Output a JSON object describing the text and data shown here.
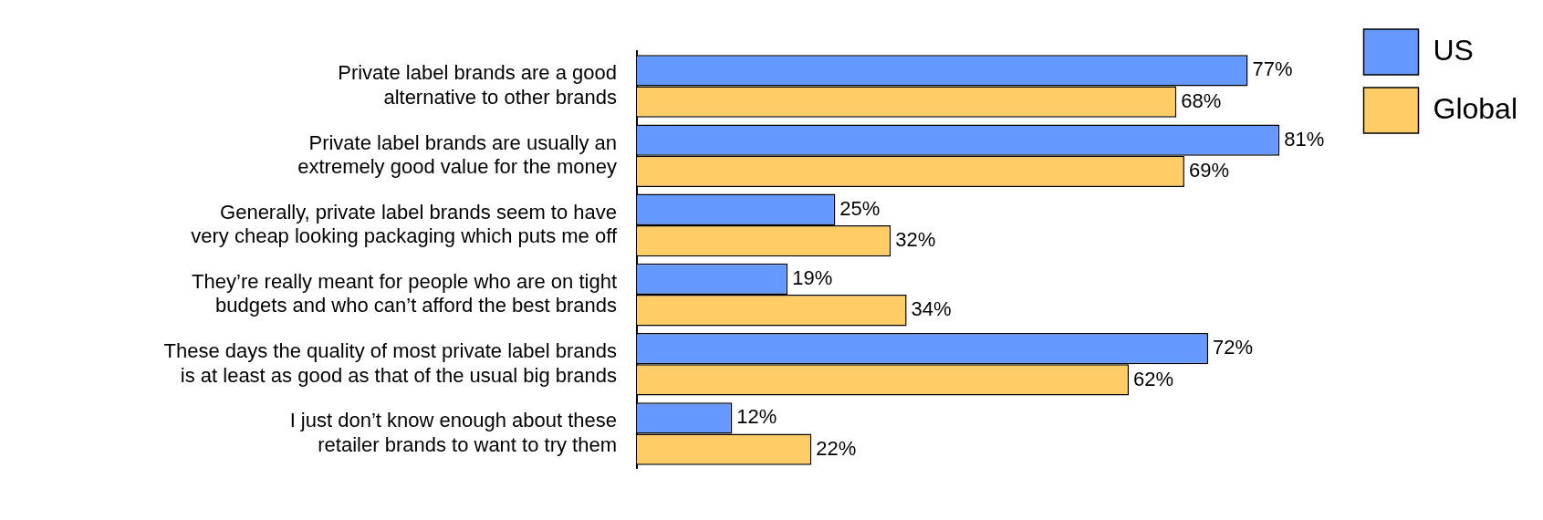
{
  "chart_data": {
    "type": "bar",
    "orientation": "horizontal",
    "categories": [
      "Private label brands are a good alternative to other brands",
      "Private label brands are usually an extremely good value for the money",
      "Generally, private label brands seem to have very cheap looking packaging which puts me off",
      "They’re really meant for people who are on tight budgets and who can’t afford the best brands",
      "These days the quality of most private label brands is at least as good as that of the usual big brands",
      "I just don’t know enough about these retailer brands to want to try them"
    ],
    "series": [
      {
        "name": "US",
        "color": "#6699ff",
        "values": [
          77,
          81,
          25,
          19,
          72,
          12
        ],
        "value_labels": [
          "77%",
          "81%",
          "25%",
          "19%",
          "72%",
          "12%"
        ]
      },
      {
        "name": "Global",
        "color": "#ffcc66",
        "values": [
          68,
          69,
          32,
          34,
          62,
          22
        ],
        "value_labels": [
          "68%",
          "69%",
          "32%",
          "34%",
          "62%",
          "22%"
        ]
      }
    ],
    "legend": "top right",
    "grid": false,
    "tick_labels": "y"
  }
}
